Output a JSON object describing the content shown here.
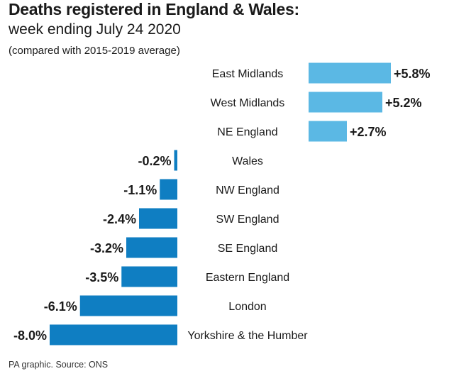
{
  "header": {
    "title": "Deaths registered in England & Wales:",
    "subtitle": "week ending July 24 2020",
    "note": "(compared with 2015-2019 average)"
  },
  "footer": {
    "source": "PA graphic. Source: ONS"
  },
  "colors": {
    "positive": "#5bb8e4",
    "negative": "#0f7ec2",
    "text": "#1a1a1a"
  },
  "chart_data": {
    "type": "bar",
    "orientation": "horizontal",
    "unit": "%",
    "categories": [
      "East Midlands",
      "West Midlands",
      "NE England",
      "Wales",
      "NW England",
      "SW England",
      "SE England",
      "Eastern England",
      "London",
      "Yorkshire & the Humber"
    ],
    "values": [
      5.8,
      5.2,
      2.7,
      -0.2,
      -1.1,
      -2.4,
      -3.2,
      -3.5,
      -6.1,
      -8.0
    ],
    "value_labels": [
      "+5.8%",
      "+5.2%",
      "+2.7%",
      "-0.2%",
      "-1.1%",
      "-2.4%",
      "-3.2%",
      "-3.5%",
      "-6.1%",
      "-8.0%"
    ],
    "xlim": [
      -8.0,
      5.8
    ],
    "grid": false,
    "legend": false
  }
}
